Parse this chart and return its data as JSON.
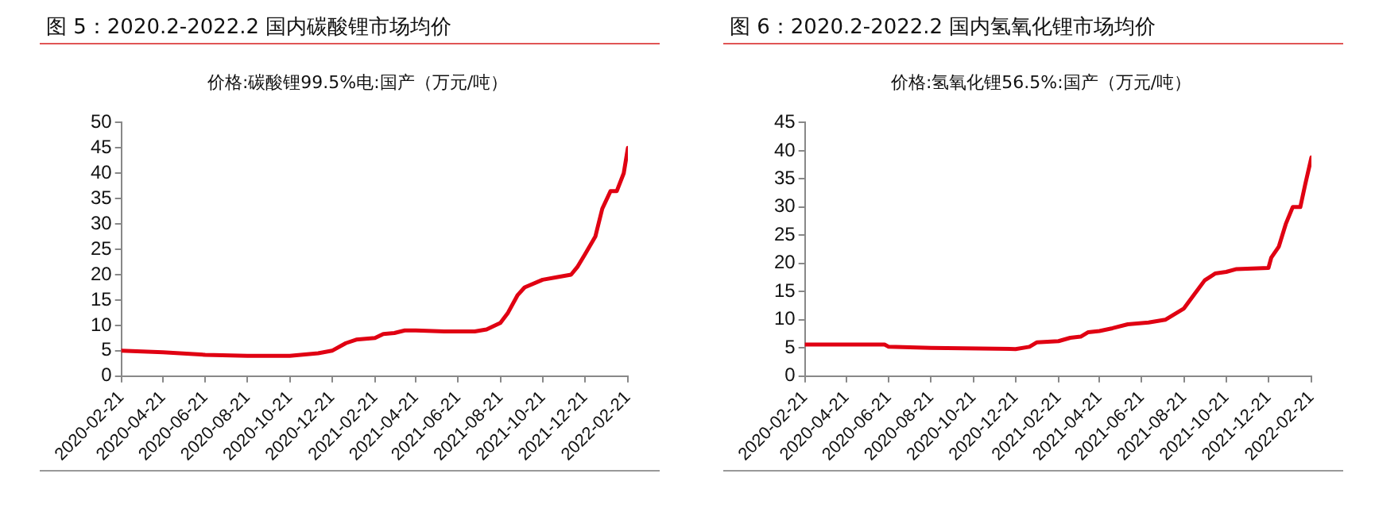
{
  "chart_data": [
    {
      "type": "line",
      "title": "图 5：2020.2-2022.2 国内碳酸锂市场均价",
      "subtitle": "价格:碳酸锂99.5%电:国产（万元/吨）",
      "x": [
        "2020-02-21",
        "2020-04-21",
        "2020-06-21",
        "2020-08-21",
        "2020-10-21",
        "2020-12-01",
        "2020-12-21",
        "2021-01-10",
        "2021-01-25",
        "2021-02-21",
        "2021-03-05",
        "2021-03-21",
        "2021-04-05",
        "2021-04-21",
        "2021-06-01",
        "2021-07-15",
        "2021-08-01",
        "2021-08-21",
        "2021-09-01",
        "2021-09-15",
        "2021-09-25",
        "2021-10-21",
        "2021-11-10",
        "2021-12-01",
        "2021-12-10",
        "2021-12-21",
        "2022-01-05",
        "2022-01-15",
        "2022-01-27",
        "2022-02-05",
        "2022-02-15",
        "2022-02-21"
      ],
      "series": [
        {
          "color": "#e00012",
          "values": [
            5,
            4.7,
            4.2,
            4,
            4,
            4.5,
            5,
            6.5,
            7.2,
            7.5,
            8.3,
            8.5,
            9,
            9,
            8.8,
            8.8,
            9.2,
            10.5,
            12.5,
            16,
            17.5,
            19,
            19.5,
            20,
            21.5,
            24,
            27.5,
            33,
            36.5,
            36.5,
            40,
            45
          ]
        }
      ],
      "xlim": [
        "2020-02-21",
        "2022-02-21"
      ],
      "xticks": [
        "2020-02-21",
        "2020-04-21",
        "2020-06-21",
        "2020-08-21",
        "2020-10-21",
        "2020-12-21",
        "2021-02-21",
        "2021-04-21",
        "2021-06-21",
        "2021-08-21",
        "2021-10-21",
        "2021-12-21",
        "2022-02-21"
      ],
      "ylim": [
        0,
        50
      ],
      "yticks": [
        0,
        5,
        10,
        15,
        20,
        25,
        30,
        35,
        40,
        45,
        50
      ],
      "grid": false,
      "legend": false,
      "marker": "none",
      "line_style": "solid"
    },
    {
      "type": "line",
      "title": "图 6：2020.2-2022.2 国内氢氧化锂市场均价",
      "subtitle": "价格:氢氧化锂56.5%:国产（万元/吨）",
      "x": [
        "2020-02-21",
        "2020-06-15",
        "2020-06-21",
        "2020-08-21",
        "2020-12-21",
        "2021-01-10",
        "2021-01-21",
        "2021-02-21",
        "2021-03-10",
        "2021-03-25",
        "2021-04-05",
        "2021-04-21",
        "2021-05-10",
        "2021-06-01",
        "2021-07-01",
        "2021-07-25",
        "2021-08-21",
        "2021-09-05",
        "2021-09-20",
        "2021-10-05",
        "2021-10-21",
        "2021-11-05",
        "2021-12-21",
        "2021-12-25",
        "2022-01-05",
        "2022-01-15",
        "2022-01-25",
        "2022-02-05",
        "2022-02-12",
        "2022-02-21"
      ],
      "series": [
        {
          "color": "#e00012",
          "values": [
            5.6,
            5.6,
            5.2,
            5,
            4.8,
            5.2,
            6,
            6.2,
            6.8,
            7,
            7.8,
            8,
            8.5,
            9.2,
            9.5,
            10,
            12,
            14.5,
            17,
            18.2,
            18.5,
            19,
            19.2,
            21,
            23,
            27,
            30,
            30,
            34,
            38.8
          ]
        }
      ],
      "xlim": [
        "2020-02-21",
        "2022-02-21"
      ],
      "xticks": [
        "2020-02-21",
        "2020-04-21",
        "2020-06-21",
        "2020-08-21",
        "2020-10-21",
        "2020-12-21",
        "2021-02-21",
        "2021-04-21",
        "2021-06-21",
        "2021-08-21",
        "2021-10-21",
        "2021-12-21",
        "2022-02-21"
      ],
      "ylim": [
        0,
        45
      ],
      "yticks": [
        0,
        5,
        10,
        15,
        20,
        25,
        30,
        35,
        40,
        45
      ],
      "grid": false,
      "legend": false,
      "marker": "none",
      "line_style": "solid"
    }
  ]
}
